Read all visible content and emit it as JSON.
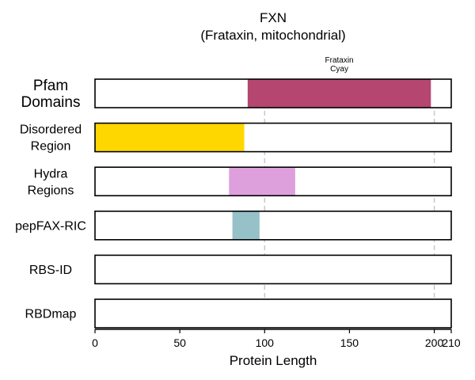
{
  "chart_data": {
    "type": "domain-track",
    "title": "FXN",
    "subtitle": "(Frataxin, mitochondrial)",
    "xlabel": "Protein Length",
    "xlim": [
      0,
      210
    ],
    "xticks": [
      "0",
      "50",
      "100",
      "150",
      "200",
      "210"
    ],
    "xtick_values": [
      0,
      50,
      100,
      150,
      200,
      210
    ],
    "reference_lines": [
      100,
      200
    ],
    "tracks": [
      {
        "label_lines": [
          "Pfam",
          "Domains"
        ],
        "label_size": "large",
        "segments": [
          {
            "start": 90,
            "end": 198,
            "color": "#b5466f",
            "label_lines": [
              "Frataxin",
              "Cyay"
            ]
          }
        ]
      },
      {
        "label_lines": [
          "Disordered",
          "Region"
        ],
        "label_size": "medium",
        "segments": [
          {
            "start": 0,
            "end": 88,
            "color": "#ffd700"
          }
        ]
      },
      {
        "label_lines": [
          "Hydra",
          "Regions"
        ],
        "label_size": "medium",
        "segments": [
          {
            "start": 79,
            "end": 118,
            "color": "#dda0dd"
          }
        ]
      },
      {
        "label_lines": [
          "pepFAX-RIC"
        ],
        "label_size": "medium",
        "segments": [
          {
            "start": 81,
            "end": 97,
            "color": "#96c1c8"
          }
        ]
      },
      {
        "label_lines": [
          "RBS-ID"
        ],
        "label_size": "medium",
        "segments": []
      },
      {
        "label_lines": [
          "RBDmap"
        ],
        "label_size": "medium",
        "segments": []
      }
    ]
  }
}
